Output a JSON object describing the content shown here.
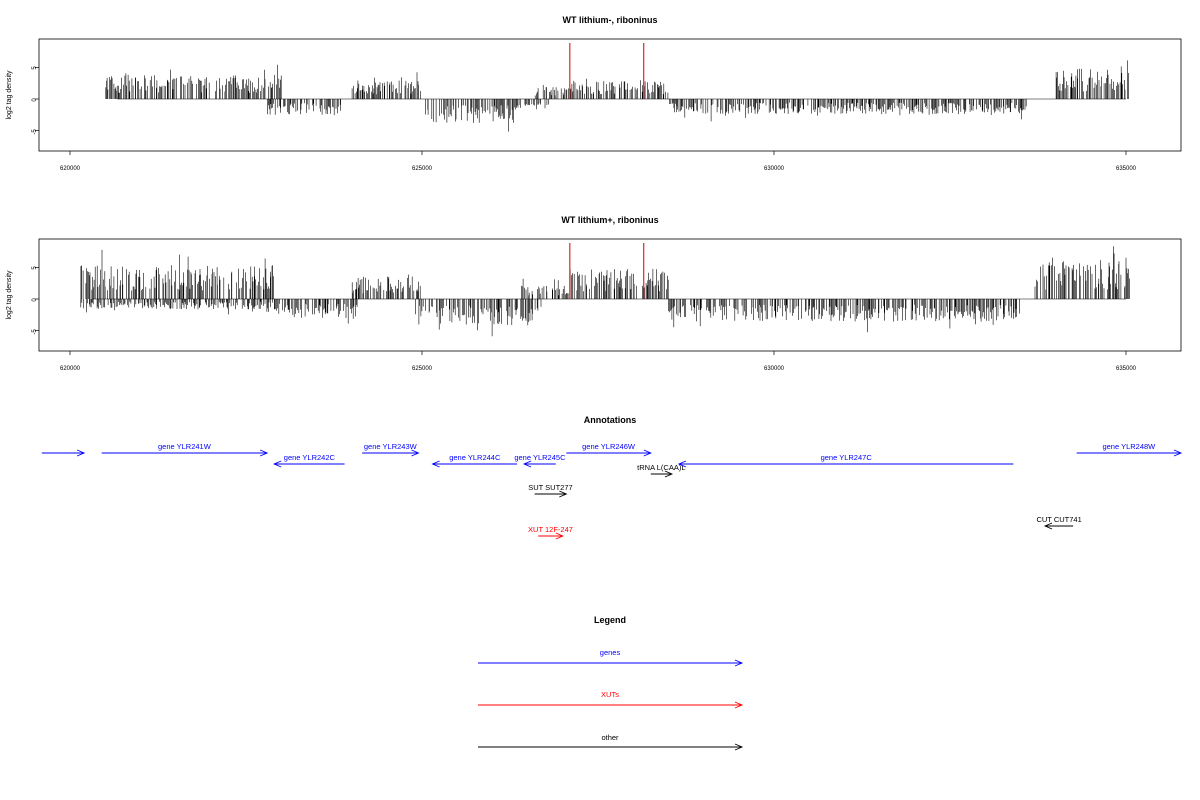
{
  "chart_data": [
    {
      "type": "bar",
      "title": "WT lithium-, riboninus",
      "ylabel": "log2 tag density",
      "xlim": [
        620000,
        635000
      ],
      "ylim": [
        -8,
        8
      ],
      "xticks": [
        "620000",
        "625000",
        "630000",
        "635000"
      ],
      "yticks": [
        "-5",
        "0",
        "5"
      ],
      "highlights": [
        627100,
        628150
      ],
      "highlight_color": "#cc0000",
      "segments": [
        {
          "start": 620500,
          "end": 623000,
          "sign": 1,
          "amp": 3.2
        },
        {
          "start": 622800,
          "end": 623900,
          "sign": -1,
          "amp": 2.2
        },
        {
          "start": 624000,
          "end": 625000,
          "sign": 1,
          "amp": 2.5
        },
        {
          "start": 625050,
          "end": 626300,
          "sign": -1,
          "amp": 3.2
        },
        {
          "start": 626300,
          "end": 626800,
          "sign": -1,
          "amp": 1.5
        },
        {
          "start": 626600,
          "end": 627100,
          "sign": 1,
          "amp": 1.6
        },
        {
          "start": 627100,
          "end": 628500,
          "sign": 1,
          "amp": 2.5
        },
        {
          "start": 628500,
          "end": 633600,
          "sign": -1,
          "amp": 2.0
        },
        {
          "start": 634000,
          "end": 635050,
          "sign": 1,
          "amp": 4.0
        }
      ]
    },
    {
      "type": "bar",
      "title": "WT lithium+, riboninus",
      "ylabel": "log2 tag density",
      "xlim": [
        620000,
        635000
      ],
      "ylim": [
        -8,
        8
      ],
      "xticks": [
        "620000",
        "625000",
        "630000",
        "635000"
      ],
      "yticks": [
        "-5",
        "0",
        "5"
      ],
      "highlights": [
        627100,
        628150
      ],
      "highlight_color": "#cc0000",
      "segments": [
        {
          "start": 620150,
          "end": 622900,
          "sign": 1,
          "amp": 4.5
        },
        {
          "start": 620150,
          "end": 622900,
          "sign": -1,
          "amp": 1.4
        },
        {
          "start": 622900,
          "end": 624100,
          "sign": -1,
          "amp": 2.5
        },
        {
          "start": 624000,
          "end": 625000,
          "sign": 1,
          "amp": 3.0
        },
        {
          "start": 624900,
          "end": 626700,
          "sign": -1,
          "amp": 3.5
        },
        {
          "start": 626400,
          "end": 627100,
          "sign": 1,
          "amp": 1.8
        },
        {
          "start": 627100,
          "end": 628500,
          "sign": 1,
          "amp": 4.0
        },
        {
          "start": 628500,
          "end": 633500,
          "sign": -1,
          "amp": 3.0
        },
        {
          "start": 633700,
          "end": 635050,
          "sign": 1,
          "amp": 5.0
        }
      ]
    }
  ],
  "annotations": {
    "title": "Annotations",
    "xlim": [
      620000,
      635000
    ],
    "items": [
      {
        "label": "",
        "start": 619600,
        "end": 620200,
        "dir": 1,
        "row": 0,
        "color": "#0000ff"
      },
      {
        "label": "gene YLR241W",
        "start": 620450,
        "end": 622800,
        "dir": 1,
        "row": 0,
        "color": "#0000ff"
      },
      {
        "label": "gene YLR242C",
        "start": 622900,
        "end": 623900,
        "dir": -1,
        "row": 1,
        "color": "#0000ff"
      },
      {
        "label": "gene YLR243W",
        "start": 624150,
        "end": 624950,
        "dir": 1,
        "row": 0,
        "color": "#0000ff"
      },
      {
        "label": "gene YLR244C",
        "start": 625150,
        "end": 626350,
        "dir": -1,
        "row": 1,
        "color": "#0000ff"
      },
      {
        "label": "gene YLR245C",
        "start": 626450,
        "end": 626900,
        "dir": -1,
        "row": 1,
        "color": "#0000ff"
      },
      {
        "label": "gene YLR246W",
        "start": 627050,
        "end": 628250,
        "dir": 1,
        "row": 0,
        "color": "#0000ff"
      },
      {
        "label": "tRNA L(CAA)L",
        "start": 628250,
        "end": 628550,
        "dir": 1,
        "row": 2,
        "color": "#000000"
      },
      {
        "label": "gene YLR247C",
        "start": 628650,
        "end": 633400,
        "dir": -1,
        "row": 1,
        "color": "#0000ff"
      },
      {
        "label": "gene YLR248W",
        "start": 634300,
        "end": 635800,
        "dir": 1,
        "row": 0,
        "color": "#0000ff"
      },
      {
        "label": "SUT SUT277",
        "start": 626600,
        "end": 627050,
        "dir": 1,
        "row": 3,
        "color": "#000000"
      },
      {
        "label": "XUT 12F-247",
        "start": 626650,
        "end": 627000,
        "dir": 1,
        "row": 5,
        "color": "#ff0000"
      },
      {
        "label": "CUT CUT741",
        "start": 633850,
        "end": 634250,
        "dir": -1,
        "row": 4,
        "color": "#000000"
      }
    ]
  },
  "legend": {
    "title": "Legend",
    "items": [
      {
        "label": "genes",
        "color": "#0000ff"
      },
      {
        "label": "XUTs",
        "color": "#ff0000"
      },
      {
        "label": "other",
        "color": "#000000"
      }
    ]
  }
}
